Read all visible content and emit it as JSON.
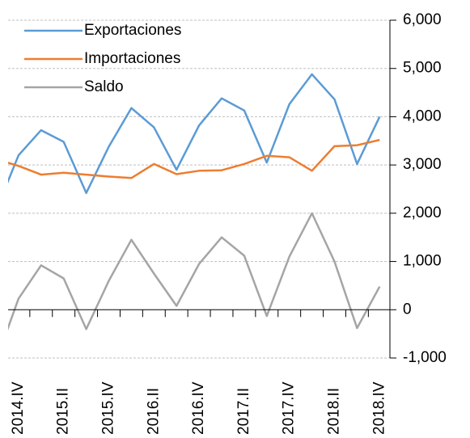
{
  "chart_data": {
    "type": "line",
    "categories": [
      null,
      "2014.IV",
      null,
      "2015.II",
      null,
      "2015.IV",
      null,
      "2016.II",
      null,
      "2016.IV",
      null,
      "2017.II",
      null,
      "2017.IV",
      null,
      "2018.II",
      null,
      "2018.IV"
    ],
    "series": [
      {
        "name": "Exportaciones",
        "color": "#5b9bd5",
        "values": [
          2050,
          3200,
          3720,
          3480,
          2420,
          3380,
          4180,
          3780,
          2900,
          3820,
          4380,
          4130,
          3050,
          4260,
          4880,
          4360,
          3020,
          4000
        ]
      },
      {
        "name": "Importaciones",
        "color": "#ed7d31",
        "values": [
          3120,
          2980,
          2800,
          2840,
          2800,
          2760,
          2730,
          3020,
          2810,
          2880,
          2890,
          3020,
          3190,
          3160,
          2880,
          3390,
          3410,
          3520
        ]
      },
      {
        "name": "Saldo",
        "color": "#a5a5a5",
        "values": [
          -1070,
          230,
          920,
          650,
          -400,
          600,
          1450,
          750,
          80,
          950,
          1500,
          1120,
          -130,
          1100,
          2000,
          1000,
          -380,
          480
        ]
      }
    ],
    "ylim": [
      -1000,
      6000
    ],
    "yticks": [
      {
        "value": -1000,
        "label": "-1,000"
      },
      0,
      {
        "value": 1000,
        "label": "1,000"
      },
      {
        "value": 2000,
        "label": "2,000"
      },
      {
        "value": 3000,
        "label": "3,000"
      },
      {
        "value": 4000,
        "label": "4,000"
      },
      {
        "value": 5000,
        "label": "5,000"
      },
      {
        "value": 6000,
        "label": "6,000"
      }
    ],
    "grid": true,
    "legend": "upper left"
  }
}
